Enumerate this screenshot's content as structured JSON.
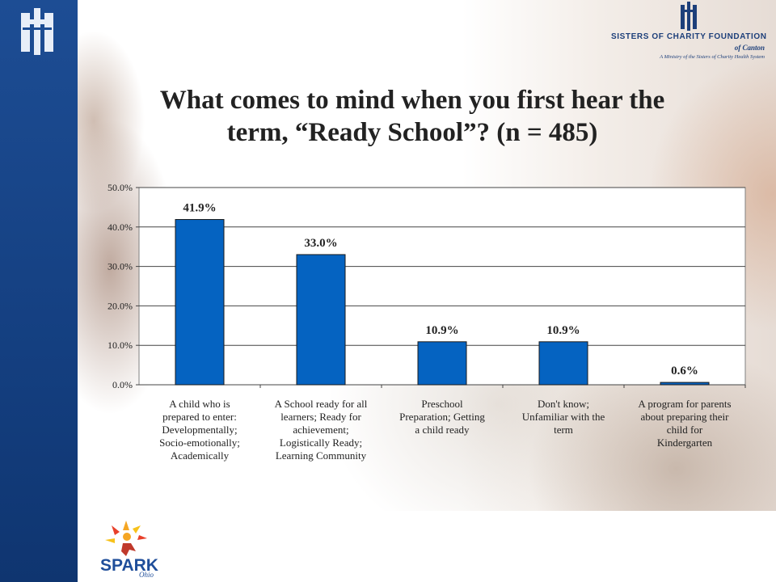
{
  "header": {
    "title_line1": "What comes to mind when you first hear the",
    "title_line2": "term, “Ready School”? (n = 485)"
  },
  "brand": {
    "name": "SISTERS OF CHARITY FOUNDATION",
    "subname": "of Canton",
    "tagline": "A Ministry of the Sisters of Charity Health System",
    "color": "#1d3f7a"
  },
  "footer": {
    "logo_text": "SPARK",
    "logo_suffix": "Ohio"
  },
  "colors": {
    "bar": "#0563c1",
    "left_band": "#1d4d94",
    "plot_border": "#808080"
  },
  "chart_data": {
    "type": "bar",
    "title": "What comes to mind when you first hear the term, “Ready School”? (n = 485)",
    "xlabel": "",
    "ylabel": "",
    "ylim": [
      0,
      50
    ],
    "yticks": [
      "0.0%",
      "10.0%",
      "20.0%",
      "30.0%",
      "40.0%",
      "50.0%"
    ],
    "grid": true,
    "categories": [
      [
        "A child who is",
        "prepared to enter:",
        "Developmentally;",
        "Socio-emotionally;",
        "Academically"
      ],
      [
        "A School ready for all",
        "learners; Ready for",
        "achievement;",
        "Logistically Ready;",
        "Learning Community"
      ],
      [
        "Preschool",
        "Preparation; Getting",
        "a child ready"
      ],
      [
        "Don't know;",
        "Unfamiliar with the",
        "term"
      ],
      [
        "A program for parents",
        "about preparing their",
        "child for",
        "Kindergarten"
      ]
    ],
    "values": [
      41.9,
      33.0,
      10.9,
      10.9,
      0.6
    ],
    "data_labels": [
      "41.9%",
      "33.0%",
      "10.9%",
      "10.9%",
      "0.6%"
    ]
  }
}
